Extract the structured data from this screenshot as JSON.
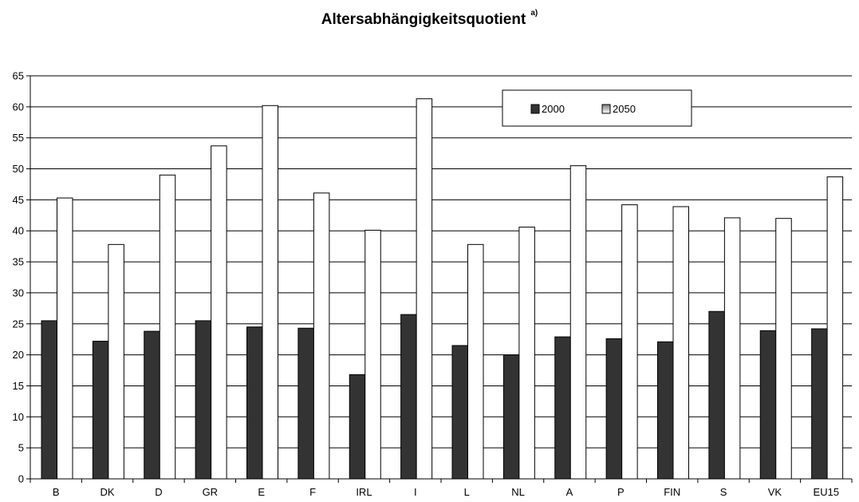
{
  "chart_data": {
    "type": "bar",
    "title": "Altersabhängigkeitsquotient",
    "title_superscript": "a)",
    "categories": [
      "B",
      "DK",
      "D",
      "GR",
      "E",
      "F",
      "IRL",
      "I",
      "L",
      "NL",
      "A",
      "P",
      "FIN",
      "S",
      "VK",
      "EU15"
    ],
    "series": [
      {
        "name": "2000",
        "values": [
          25.5,
          22.2,
          23.8,
          25.5,
          24.5,
          24.3,
          16.8,
          26.5,
          21.5,
          20.0,
          22.9,
          22.6,
          22.1,
          27.0,
          23.9,
          24.2
        ]
      },
      {
        "name": "2050",
        "values": [
          45.3,
          37.8,
          49.0,
          53.7,
          60.2,
          46.1,
          40.1,
          61.3,
          37.8,
          40.6,
          50.5,
          44.2,
          43.9,
          42.1,
          42.0,
          48.7
        ]
      }
    ],
    "xlabel": "",
    "ylabel": "",
    "ylim": [
      0,
      65
    ],
    "yticks": [
      "0",
      "5",
      "10",
      "15",
      "20",
      "25",
      "30",
      "35",
      "40",
      "45",
      "50",
      "55",
      "60",
      "65"
    ],
    "grid": true,
    "legend": "top-right",
    "colors": {
      "series_2000": "#333333",
      "series_2050_top": "#7a7a7a",
      "series_2050_bottom": "#ffffff"
    }
  }
}
